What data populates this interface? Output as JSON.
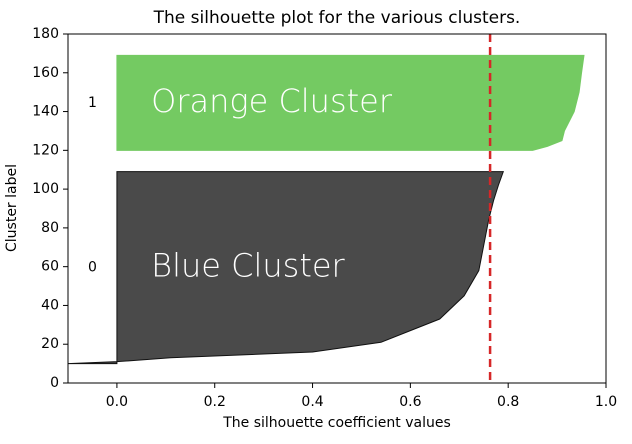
{
  "chart_data": {
    "type": "silhouette",
    "title": "The silhouette plot for the various clusters.",
    "x_label": "The silhouette coefficient values",
    "y_label": "Cluster label",
    "xlim": [
      -0.1,
      1.0
    ],
    "ylim": [
      0,
      180
    ],
    "xticks": [
      {
        "value": 0,
        "label": "0.0"
      },
      {
        "value": 0.2,
        "label": "0.2"
      },
      {
        "value": 0.4,
        "label": "0.4"
      },
      {
        "value": 0.6,
        "label": "0.6"
      },
      {
        "value": 0.8,
        "label": "0.8"
      },
      {
        "value": 1.0,
        "label": "1.0"
      }
    ],
    "yticks": [
      0,
      20,
      40,
      60,
      80,
      100,
      120,
      140,
      160,
      180
    ],
    "average_score": 0.763,
    "average_color": "#d62728",
    "series": [
      {
        "name": "0",
        "annotation": "Blue Cluster",
        "color": "#4a4a4a",
        "y": [
          10,
          11,
          13,
          16,
          21,
          27,
          33,
          45,
          58,
          71,
          84,
          94,
          102,
          109
        ],
        "values": [
          -0.1,
          0.0,
          0.11,
          0.4,
          0.54,
          0.6,
          0.66,
          0.71,
          0.74,
          0.75,
          0.76,
          0.77,
          0.78,
          0.79
        ]
      },
      {
        "name": "1",
        "annotation": "Orange Cluster",
        "color": "#74ca62",
        "y": [
          120,
          122,
          125,
          130,
          140,
          150,
          160,
          169
        ],
        "values": [
          0.85,
          0.88,
          0.91,
          0.915,
          0.935,
          0.945,
          0.95,
          0.955
        ]
      }
    ]
  }
}
